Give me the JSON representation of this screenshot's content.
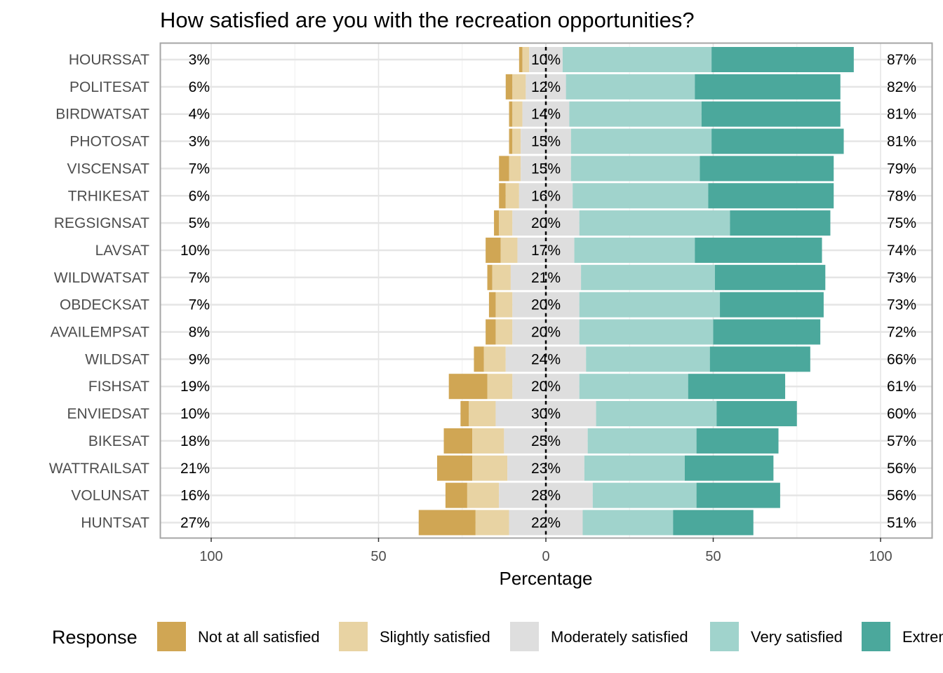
{
  "chart_data": {
    "type": "bar",
    "subtype": "diverging-stacked-likert",
    "title": "How satisfied are you with the recreation opportunities?",
    "xlabel": "Percentage",
    "xlim": [
      -100,
      100
    ],
    "x_ticks": [
      -100,
      -50,
      0,
      50,
      100
    ],
    "x_tick_labels": [
      "100",
      "50",
      "0",
      "50",
      "100"
    ],
    "grid": true,
    "legend": {
      "title": "Response",
      "position": "bottom"
    },
    "series": [
      {
        "name": "Not at all satisfied",
        "color": "#D0A654"
      },
      {
        "name": "Slightly satisfied",
        "color": "#E8D3A3"
      },
      {
        "name": "Moderately satisfied",
        "color": "#DEDEDE"
      },
      {
        "name": "Very satisfied",
        "color": "#A0D3CC"
      },
      {
        "name": "Extremely satisfied",
        "color": "#4BA89C"
      }
    ],
    "categories": [
      "HOURSSAT",
      "POLITESAT",
      "BIRDWATSAT",
      "PHOTOSAT",
      "VISCENSAT",
      "TRHIKESAT",
      "REGSIGNSAT",
      "LAVSAT",
      "WILDWATSAT",
      "OBDECKSAT",
      "AVAILEMPSAT",
      "WILDSAT",
      "FISHSAT",
      "ENVIEDSAT",
      "BIKESAT",
      "WATTRAILSAT",
      "VOLUNSAT",
      "HUNTSAT"
    ],
    "rows": [
      {
        "label": "HOURSSAT",
        "values": [
          1,
          2,
          10,
          44.5,
          42.5
        ],
        "low_label": "3%",
        "neutral_label": "10%",
        "high_label": "87%"
      },
      {
        "label": "POLITESAT",
        "values": [
          2,
          4,
          12,
          38.5,
          43.5
        ],
        "low_label": "6%",
        "neutral_label": "12%",
        "high_label": "82%"
      },
      {
        "label": "BIRDWATSAT",
        "values": [
          1,
          3,
          14,
          39.5,
          41.5
        ],
        "low_label": "4%",
        "neutral_label": "14%",
        "high_label": "81%"
      },
      {
        "label": "PHOTOSAT",
        "values": [
          1,
          2.5,
          15,
          42,
          39.5
        ],
        "low_label": "3%",
        "neutral_label": "15%",
        "high_label": "81%"
      },
      {
        "label": "VISCENSAT",
        "values": [
          3,
          3.5,
          15,
          38.5,
          40
        ],
        "low_label": "7%",
        "neutral_label": "15%",
        "high_label": "79%"
      },
      {
        "label": "TRHIKESAT",
        "values": [
          2,
          4,
          16,
          40.5,
          37.5
        ],
        "low_label": "6%",
        "neutral_label": "16%",
        "high_label": "78%"
      },
      {
        "label": "REGSIGNSAT",
        "values": [
          1.5,
          4,
          20,
          45,
          30
        ],
        "low_label": "5%",
        "neutral_label": "20%",
        "high_label": "75%"
      },
      {
        "label": "LAVSAT",
        "values": [
          4.5,
          5,
          17,
          36,
          38
        ],
        "low_label": "10%",
        "neutral_label": "17%",
        "high_label": "74%"
      },
      {
        "label": "WILDWATSAT",
        "values": [
          1.5,
          5.5,
          21,
          40,
          33
        ],
        "low_label": "7%",
        "neutral_label": "21%",
        "high_label": "73%"
      },
      {
        "label": "OBDECKSAT",
        "values": [
          2,
          5,
          20,
          42,
          31
        ],
        "low_label": "7%",
        "neutral_label": "20%",
        "high_label": "73%"
      },
      {
        "label": "AVAILEMPSAT",
        "values": [
          3,
          5,
          20,
          40,
          32
        ],
        "low_label": "8%",
        "neutral_label": "20%",
        "high_label": "72%"
      },
      {
        "label": "WILDSAT",
        "values": [
          3,
          6.5,
          24,
          37,
          30
        ],
        "low_label": "9%",
        "neutral_label": "24%",
        "high_label": "66%"
      },
      {
        "label": "FISHSAT",
        "values": [
          11.5,
          7.5,
          20,
          32.5,
          29
        ],
        "low_label": "19%",
        "neutral_label": "20%",
        "high_label": "61%"
      },
      {
        "label": "ENVIEDSAT",
        "values": [
          2.5,
          8,
          30,
          36,
          24
        ],
        "low_label": "10%",
        "neutral_label": "30%",
        "high_label": "60%"
      },
      {
        "label": "BIKESAT",
        "values": [
          8.5,
          9.5,
          25,
          32.5,
          24.5
        ],
        "low_label": "18%",
        "neutral_label": "25%",
        "high_label": "57%"
      },
      {
        "label": "WATTRAILSAT",
        "values": [
          10.5,
          10.5,
          23,
          30,
          26.5
        ],
        "low_label": "21%",
        "neutral_label": "23%",
        "high_label": "56%"
      },
      {
        "label": "VOLUNSAT",
        "values": [
          6.5,
          9.5,
          28,
          31,
          25
        ],
        "low_label": "16%",
        "neutral_label": "28%",
        "high_label": "56%"
      },
      {
        "label": "HUNTSAT",
        "values": [
          17,
          10,
          22,
          27,
          24
        ],
        "low_label": "27%",
        "neutral_label": "22%",
        "high_label": "51%"
      }
    ]
  }
}
